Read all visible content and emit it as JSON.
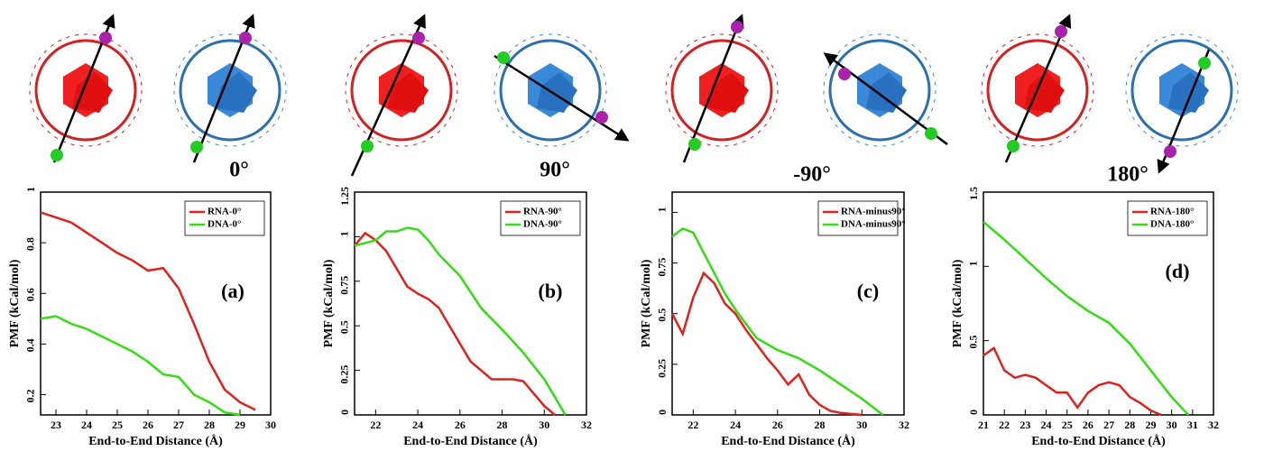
{
  "chart_data": [
    {
      "type": "line",
      "angle_label": "0°",
      "panel_label": "(a)",
      "x_label": "End-to-End Distance (Å)",
      "y_label": "PMF (kCal/mol)",
      "xlim": [
        22.5,
        30
      ],
      "xticks": [
        23,
        24,
        25,
        26,
        27,
        28,
        29,
        30
      ],
      "ylim": [
        0.12,
        1
      ],
      "yticks": [
        0.2,
        0.4,
        0.6,
        0.8,
        1
      ],
      "legend": "upper right",
      "series": [
        {
          "name": "RNA-0°",
          "color": "#e0201b",
          "x": [
            22.5,
            23,
            23.5,
            24,
            24.5,
            25,
            25.5,
            26,
            26.5,
            27,
            27.5,
            28,
            28.5,
            29,
            29.5
          ],
          "values": [
            0.92,
            0.9,
            0.88,
            0.84,
            0.8,
            0.76,
            0.73,
            0.69,
            0.7,
            0.62,
            0.48,
            0.33,
            0.22,
            0.17,
            0.14
          ]
        },
        {
          "name": "DNA-0°",
          "color": "#33dd11",
          "x": [
            22.5,
            23,
            23.5,
            24,
            24.5,
            25,
            25.5,
            26,
            26.5,
            27,
            27.5,
            28,
            28.5,
            29
          ],
          "values": [
            0.5,
            0.51,
            0.48,
            0.46,
            0.43,
            0.4,
            0.37,
            0.33,
            0.28,
            0.27,
            0.2,
            0.17,
            0.13,
            0.12
          ]
        }
      ]
    },
    {
      "type": "line",
      "angle_label": "90°",
      "panel_label": "(b)",
      "x_label": "End-to-End Distance (Å)",
      "y_label": "PMF (kCal/mol)",
      "xlim": [
        21,
        32
      ],
      "xticks": [
        22,
        24,
        26,
        28,
        30,
        32
      ],
      "ylim": [
        0,
        1.25
      ],
      "yticks": [
        0,
        0.25,
        0.5,
        0.75,
        1,
        1.25
      ],
      "legend": "upper right",
      "series": [
        {
          "name": "RNA-90°",
          "color": "#e0201b",
          "x": [
            21,
            21.5,
            22,
            22.5,
            23,
            23.5,
            24,
            24.5,
            25,
            25.5,
            26,
            26.5,
            27,
            27.5,
            28,
            28.5,
            29,
            29.5,
            30,
            30.5
          ],
          "values": [
            0.95,
            1.02,
            0.98,
            0.92,
            0.82,
            0.72,
            0.68,
            0.65,
            0.6,
            0.5,
            0.4,
            0.3,
            0.25,
            0.2,
            0.2,
            0.2,
            0.19,
            0.12,
            0.05,
            0
          ]
        },
        {
          "name": "DNA-90°",
          "color": "#33dd11",
          "x": [
            21,
            22,
            22.5,
            23,
            23.5,
            24,
            24.5,
            25,
            26,
            27,
            28,
            29,
            30,
            30.5,
            31
          ],
          "values": [
            0.95,
            0.98,
            1.03,
            1.03,
            1.05,
            1.04,
            0.98,
            0.9,
            0.78,
            0.6,
            0.48,
            0.35,
            0.2,
            0.1,
            0
          ]
        }
      ]
    },
    {
      "type": "line",
      "angle_label": "-90°",
      "panel_label": "(c)",
      "x_label": "End-to-End Distance (Å)",
      "y_label": "PMF (kCal/mol)",
      "xlim": [
        21,
        32
      ],
      "xticks": [
        22,
        24,
        26,
        28,
        30,
        32
      ],
      "ylim": [
        0,
        1.1
      ],
      "yticks": [
        0,
        0.25,
        0.5,
        0.75,
        1
      ],
      "legend": "upper right",
      "series": [
        {
          "name": "RNA-minus90°",
          "color": "#e0201b",
          "x": [
            21,
            21.5,
            22,
            22.5,
            23,
            23.5,
            24,
            24.5,
            25,
            25.5,
            26,
            26.5,
            27,
            27.5,
            28,
            28.5,
            29,
            30
          ],
          "values": [
            0.5,
            0.4,
            0.58,
            0.7,
            0.65,
            0.55,
            0.5,
            0.42,
            0.35,
            0.28,
            0.22,
            0.15,
            0.2,
            0.1,
            0.05,
            0.02,
            0.01,
            0
          ]
        },
        {
          "name": "DNA-minus90°",
          "color": "#33dd11",
          "x": [
            21,
            21.5,
            22,
            22.5,
            23,
            23.5,
            24,
            24.5,
            25,
            26,
            27,
            28,
            29,
            30,
            31
          ],
          "values": [
            0.88,
            0.92,
            0.9,
            0.8,
            0.7,
            0.6,
            0.52,
            0.45,
            0.38,
            0.32,
            0.28,
            0.22,
            0.15,
            0.08,
            0
          ]
        }
      ]
    },
    {
      "type": "line",
      "angle_label": "180°",
      "panel_label": "(d)",
      "x_label": "End-to-End Distance (Å)",
      "y_label": "PMF (kCal/mol)",
      "xlim": [
        21,
        32
      ],
      "xticks": [
        21,
        22,
        23,
        24,
        25,
        26,
        27,
        28,
        29,
        30,
        31,
        32
      ],
      "ylim": [
        0,
        1.5
      ],
      "yticks": [
        0,
        0.5,
        1,
        1.5
      ],
      "legend": "upper right",
      "series": [
        {
          "name": "RNA-180°",
          "color": "#e0201b",
          "x": [
            21,
            21.5,
            22,
            22.5,
            23,
            23.5,
            24,
            24.5,
            25,
            25.5,
            26,
            26.5,
            27,
            27.5,
            28,
            28.5,
            29,
            29.5
          ],
          "values": [
            0.4,
            0.45,
            0.3,
            0.25,
            0.27,
            0.25,
            0.2,
            0.15,
            0.15,
            0.05,
            0.15,
            0.2,
            0.22,
            0.2,
            0.12,
            0.08,
            0.03,
            0
          ]
        },
        {
          "name": "DNA-180°",
          "color": "#33dd11",
          "x": [
            21,
            22,
            23,
            24,
            25,
            26,
            27,
            28,
            29,
            30,
            30.8
          ],
          "values": [
            1.3,
            1.18,
            1.05,
            0.92,
            0.8,
            0.7,
            0.62,
            0.48,
            0.3,
            0.12,
            0
          ]
        }
      ]
    }
  ]
}
